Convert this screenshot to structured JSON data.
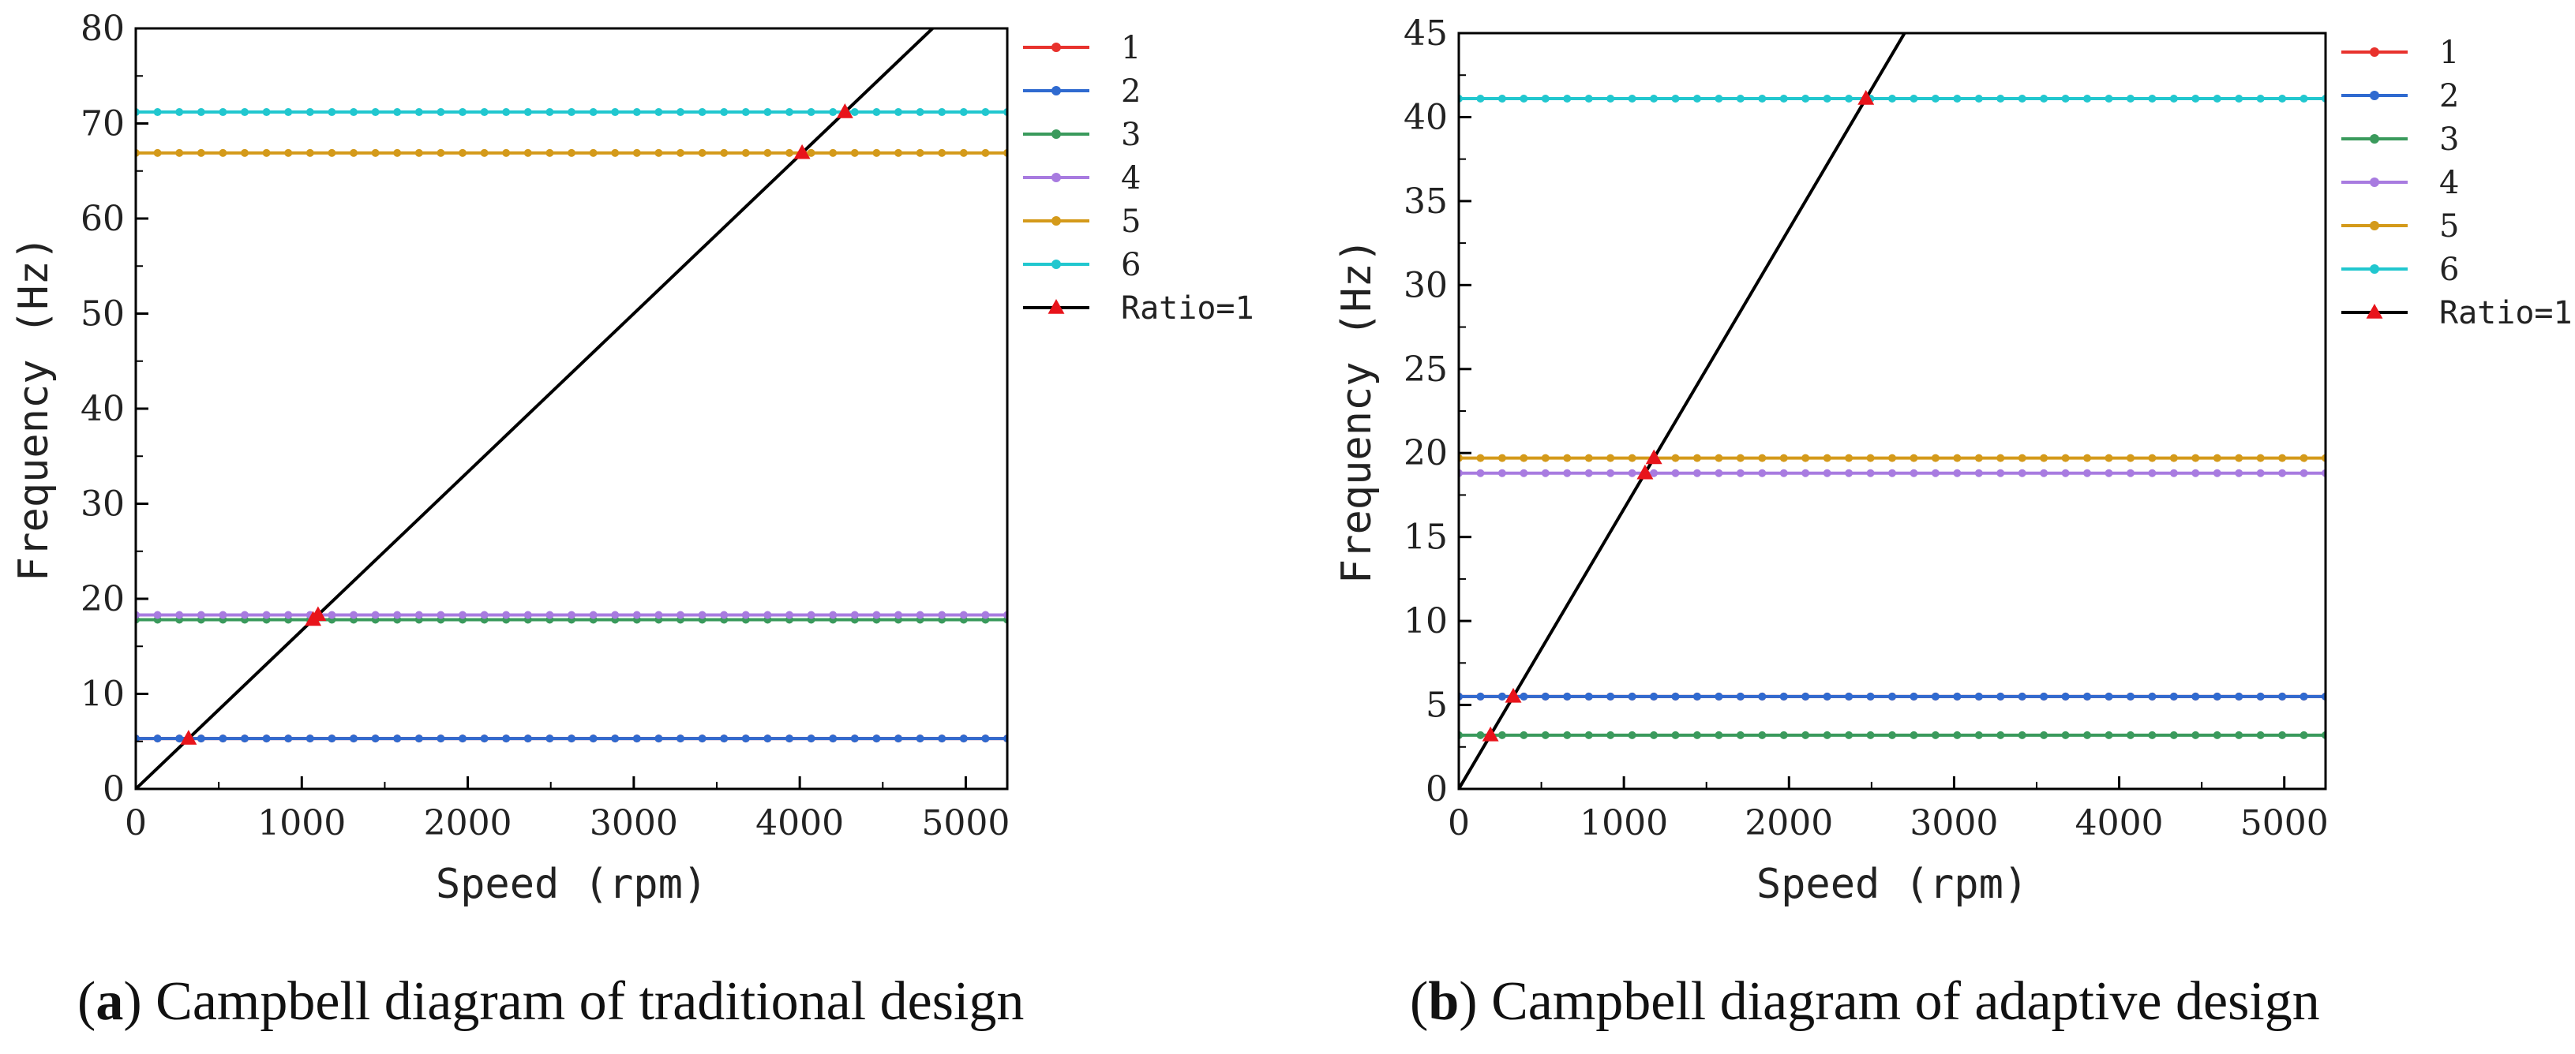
{
  "chart_data": [
    {
      "type": "line",
      "title": "Campbell diagram of traditional design",
      "caption_letter": "a",
      "caption_text": "Campbell diagram of traditional design",
      "xlabel": "Speed (rpm)",
      "ylabel": "Frequency (Hz)",
      "xlim": [
        0,
        5250
      ],
      "ylim": [
        0,
        80
      ],
      "xticks": [
        0,
        1000,
        2000,
        3000,
        4000,
        5000
      ],
      "yticks": [
        0,
        10,
        20,
        30,
        40,
        50,
        60,
        70,
        80
      ],
      "x": [
        0,
        5250
      ],
      "series": [
        {
          "name": "1",
          "color": "#e8322d",
          "values": [
            5.3,
            5.3
          ]
        },
        {
          "name": "2",
          "color": "#2f6ad0",
          "values": [
            5.3,
            5.3
          ]
        },
        {
          "name": "3",
          "color": "#3a9a5c",
          "values": [
            17.8,
            17.8
          ]
        },
        {
          "name": "4",
          "color": "#a87be0",
          "values": [
            18.3,
            18.3
          ]
        },
        {
          "name": "5",
          "color": "#d49a1a",
          "values": [
            66.9,
            66.9
          ]
        },
        {
          "name": "6",
          "color": "#21c7cf",
          "values": [
            71.2,
            71.2
          ]
        }
      ],
      "ratio_line": {
        "name": "Ratio=1",
        "color": "#000000",
        "marker_color": "#e8141b",
        "x": [
          0,
          4800
        ],
        "y": [
          0,
          80
        ]
      },
      "intersections": [
        {
          "x": 318,
          "y": 5.3
        },
        {
          "x": 1068,
          "y": 17.8
        },
        {
          "x": 1098,
          "y": 18.3
        },
        {
          "x": 4014,
          "y": 66.9
        },
        {
          "x": 4272,
          "y": 71.2
        }
      ],
      "legend": "right"
    },
    {
      "type": "line",
      "title": "Campbell diagram of adaptive design",
      "caption_letter": "b",
      "caption_text": "Campbell diagram of adaptive design",
      "xlabel": "Speed (rpm)",
      "ylabel": "Frequency (Hz)",
      "xlim": [
        0,
        5250
      ],
      "ylim": [
        0,
        45
      ],
      "xticks": [
        0,
        1000,
        2000,
        3000,
        4000,
        5000
      ],
      "yticks": [
        0,
        5,
        10,
        15,
        20,
        25,
        30,
        35,
        40,
        45
      ],
      "x": [
        0,
        5250
      ],
      "series": [
        {
          "name": "1",
          "color": "#e8322d",
          "values": [
            5.5,
            5.5
          ]
        },
        {
          "name": "2",
          "color": "#2f6ad0",
          "values": [
            5.5,
            5.5
          ]
        },
        {
          "name": "3",
          "color": "#3a9a5c",
          "values": [
            3.2,
            3.2
          ]
        },
        {
          "name": "4",
          "color": "#a87be0",
          "values": [
            18.8,
            18.8
          ]
        },
        {
          "name": "5",
          "color": "#d49a1a",
          "values": [
            19.7,
            19.7
          ]
        },
        {
          "name": "6",
          "color": "#21c7cf",
          "values": [
            41.1,
            41.1
          ]
        }
      ],
      "ratio_line": {
        "name": "Ratio=1",
        "color": "#000000",
        "marker_color": "#e8141b",
        "x": [
          0,
          2700
        ],
        "y": [
          0,
          45
        ]
      },
      "intersections": [
        {
          "x": 192,
          "y": 3.2
        },
        {
          "x": 330,
          "y": 5.5
        },
        {
          "x": 1128,
          "y": 18.8
        },
        {
          "x": 1182,
          "y": 19.7
        },
        {
          "x": 2466,
          "y": 41.1
        }
      ],
      "legend": "right"
    }
  ]
}
